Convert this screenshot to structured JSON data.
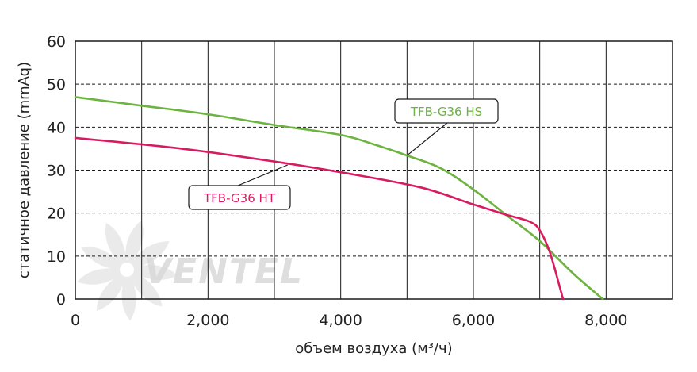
{
  "chart_data": {
    "type": "line",
    "title": "",
    "xlabel": "объем воздуха (м³/ч)",
    "ylabel": "статичное давление (mmAq)",
    "xlim": [
      0,
      9000
    ],
    "ylim": [
      0,
      60
    ],
    "x_ticks": [
      0,
      2000,
      4000,
      6000,
      8000
    ],
    "x_tick_labels": [
      "0",
      "2,000",
      "4,000",
      "6,000",
      "8,000"
    ],
    "x_gridlines": [
      0,
      1000,
      2000,
      3000,
      4000,
      5000,
      6000,
      7000,
      8000,
      9000
    ],
    "y_ticks": [
      0,
      10,
      20,
      30,
      40,
      50,
      60
    ],
    "y_tick_labels": [
      "0",
      "10",
      "20",
      "30",
      "40",
      "50",
      "60"
    ],
    "grid": true,
    "legend": "callouts",
    "series": [
      {
        "name": "TFB-G36 HS",
        "color": "#6cb33f",
        "points": [
          [
            0,
            47
          ],
          [
            1000,
            45
          ],
          [
            2000,
            43
          ],
          [
            3000,
            40.5
          ],
          [
            4000,
            38.2
          ],
          [
            4500,
            36
          ],
          [
            5000,
            33.4
          ],
          [
            5500,
            30.5
          ],
          [
            6000,
            25.5
          ],
          [
            6500,
            19.5
          ],
          [
            7000,
            13.5
          ],
          [
            7500,
            6
          ],
          [
            7950,
            0
          ]
        ]
      },
      {
        "name": "TFB-G36 HT",
        "color": "#d81b60",
        "points": [
          [
            0,
            37.5
          ],
          [
            1600,
            35
          ],
          [
            3000,
            32
          ],
          [
            4000,
            29.5
          ],
          [
            5200,
            26
          ],
          [
            6000,
            22
          ],
          [
            6500,
            19.6
          ],
          [
            6850,
            18
          ],
          [
            7000,
            16
          ],
          [
            7150,
            11
          ],
          [
            7280,
            4
          ],
          [
            7350,
            0
          ]
        ]
      }
    ],
    "annotations": [
      {
        "text": "TFB-G36 HS",
        "series": 0,
        "target": [
          5000,
          33.4
        ],
        "color": "#6cb33f"
      },
      {
        "text": "TFB-G36 HT",
        "series": 1,
        "target": [
          3200,
          31.2
        ],
        "color": "#d81b60"
      }
    ]
  },
  "watermark": {
    "text": "VENTEL",
    "color": "#d9d9d9"
  }
}
